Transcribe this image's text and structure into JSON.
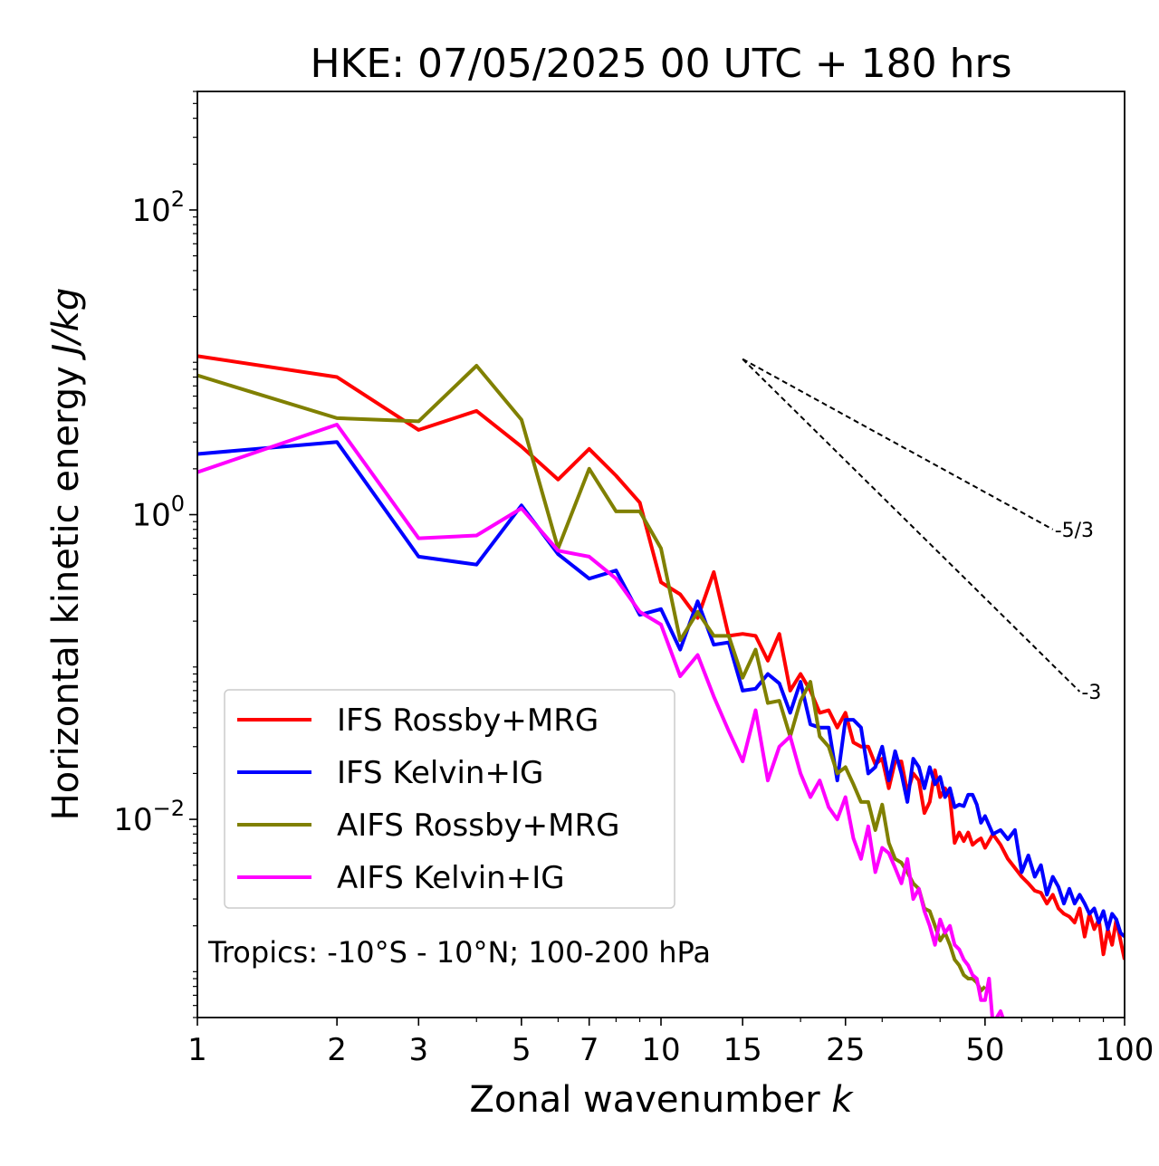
{
  "chart_data": {
    "type": "line",
    "title": "HKE: 07/05/2025 00 UTC + 180 hrs",
    "xlabel": "Zonal wavenumber",
    "xlabel_var": "k",
    "ylabel": "Horizontal kinetic energy",
    "ylabel_unit": "J/kg",
    "xscale": "log",
    "yscale": "log",
    "xlim": [
      1,
      100
    ],
    "ylim": [
      0.0005,
      600
    ],
    "xticks": [
      1,
      2,
      3,
      5,
      7,
      10,
      15,
      25,
      50,
      100
    ],
    "xtick_labels": [
      "1",
      "2",
      "3",
      "5",
      "7",
      "10",
      "15",
      "25",
      "50",
      "100"
    ],
    "yticks": [
      0.01,
      1,
      100
    ],
    "ytick_labels": [
      {
        "base": "10",
        "exp": "−2"
      },
      {
        "base": "10",
        "exp": "0"
      },
      {
        "base": "10",
        "exp": "2"
      }
    ],
    "annotation": "Tropics: -10°S - 10°N; 100-200 hPa",
    "legend_position": "lower-left",
    "reference_slopes": [
      {
        "label": "-5/3",
        "x": [
          15,
          70
        ],
        "y": [
          10.5,
          0.8
        ]
      },
      {
        "label": "-3",
        "x": [
          15,
          80
        ],
        "y": [
          10.5,
          0.069
        ]
      }
    ],
    "series": [
      {
        "name": "IFS Rossby+MRG",
        "color": "#ff0000",
        "x": [
          1,
          2,
          3,
          4,
          5,
          6,
          7,
          8,
          9,
          10,
          11,
          12,
          13,
          14,
          15,
          16,
          17,
          18,
          19,
          20,
          21,
          22,
          23,
          24,
          25,
          26,
          27,
          28,
          29,
          30,
          31,
          32,
          33,
          34,
          35,
          36,
          37,
          38,
          39,
          40,
          41,
          42,
          43,
          44,
          45,
          46,
          47,
          48,
          49,
          50,
          52,
          54,
          56,
          58,
          60,
          62,
          64,
          66,
          68,
          70,
          72,
          74,
          76,
          78,
          80,
          82,
          84,
          86,
          88,
          90,
          92,
          94,
          96,
          98,
          100
        ],
        "y": [
          11,
          8,
          3.6,
          4.8,
          2.8,
          1.7,
          2.7,
          1.8,
          1.2,
          0.36,
          0.3,
          0.21,
          0.42,
          0.16,
          0.165,
          0.16,
          0.11,
          0.165,
          0.07,
          0.09,
          0.07,
          0.05,
          0.052,
          0.04,
          0.05,
          0.032,
          0.03,
          0.03,
          0.023,
          0.025,
          0.016,
          0.024,
          0.024,
          0.015,
          0.02,
          0.018,
          0.011,
          0.013,
          0.021,
          0.014,
          0.016,
          0.014,
          0.007,
          0.0082,
          0.0072,
          0.0082,
          0.0068,
          0.0072,
          0.0075,
          0.0065,
          0.008,
          0.0068,
          0.0055,
          0.0048,
          0.0042,
          0.0038,
          0.0034,
          0.0033,
          0.0028,
          0.0032,
          0.0026,
          0.0024,
          0.0023,
          0.0021,
          0.0026,
          0.0017,
          0.0024,
          0.0019,
          0.0022,
          0.0013,
          0.0019,
          0.0015,
          0.0022,
          0.0016,
          0.0012
        ]
      },
      {
        "name": "IFS Kelvin+IG",
        "color": "#0000ff",
        "x": [
          1,
          2,
          3,
          4,
          5,
          6,
          7,
          8,
          9,
          10,
          11,
          12,
          13,
          14,
          15,
          16,
          17,
          18,
          19,
          20,
          21,
          22,
          23,
          24,
          25,
          26,
          27,
          28,
          29,
          30,
          31,
          32,
          33,
          34,
          35,
          36,
          37,
          38,
          39,
          40,
          41,
          42,
          43,
          44,
          45,
          46,
          47,
          48,
          49,
          50,
          52,
          54,
          56,
          58,
          60,
          62,
          64,
          66,
          68,
          70,
          72,
          74,
          76,
          78,
          80,
          82,
          84,
          86,
          88,
          90,
          92,
          94,
          96,
          98,
          100
        ],
        "y": [
          2.5,
          3.0,
          0.53,
          0.47,
          1.15,
          0.55,
          0.38,
          0.43,
          0.22,
          0.24,
          0.13,
          0.27,
          0.14,
          0.145,
          0.07,
          0.072,
          0.09,
          0.078,
          0.05,
          0.08,
          0.042,
          0.04,
          0.04,
          0.018,
          0.045,
          0.045,
          0.04,
          0.02,
          0.022,
          0.03,
          0.018,
          0.028,
          0.02,
          0.013,
          0.025,
          0.022,
          0.016,
          0.022,
          0.017,
          0.019,
          0.014,
          0.016,
          0.012,
          0.0125,
          0.0122,
          0.0145,
          0.0145,
          0.0125,
          0.0095,
          0.0105,
          0.008,
          0.0085,
          0.0074,
          0.0085,
          0.0045,
          0.0058,
          0.0042,
          0.005,
          0.0032,
          0.0042,
          0.0036,
          0.0028,
          0.0035,
          0.0028,
          0.0032,
          0.0028,
          0.0024,
          0.0026,
          0.0021,
          0.0025,
          0.0019,
          0.0024,
          0.0022,
          0.0018,
          0.0017
        ]
      },
      {
        "name": "AIFS Rossby+MRG",
        "color": "#808000",
        "x": [
          1,
          2,
          3,
          4,
          5,
          6,
          7,
          8,
          9,
          10,
          11,
          12,
          13,
          14,
          15,
          16,
          17,
          18,
          19,
          20,
          21,
          22,
          23,
          24,
          25,
          26,
          27,
          28,
          29,
          30,
          31,
          32,
          33,
          34,
          35,
          36,
          37,
          38,
          39,
          40,
          41,
          42,
          43,
          44,
          45,
          46,
          47,
          48,
          49,
          50
        ],
        "y": [
          8.2,
          4.3,
          4.1,
          9.5,
          4.2,
          0.6,
          2.0,
          1.05,
          1.05,
          0.6,
          0.15,
          0.23,
          0.16,
          0.16,
          0.085,
          0.13,
          0.058,
          0.06,
          0.035,
          0.06,
          0.08,
          0.035,
          0.03,
          0.02,
          0.022,
          0.017,
          0.013,
          0.013,
          0.0085,
          0.0125,
          0.007,
          0.0055,
          0.0052,
          0.0045,
          0.0038,
          0.0035,
          0.0026,
          0.0025,
          0.002,
          0.0016,
          0.0018,
          0.0015,
          0.0012,
          0.0011,
          0.00095,
          0.0009,
          0.0009,
          0.00085,
          0.00075,
          0.0008
        ]
      },
      {
        "name": "AIFS Kelvin+IG",
        "color": "#ff00ff",
        "x": [
          1,
          2,
          3,
          4,
          5,
          6,
          7,
          8,
          9,
          10,
          11,
          12,
          13,
          14,
          15,
          16,
          17,
          18,
          19,
          20,
          21,
          22,
          23,
          24,
          25,
          26,
          27,
          28,
          29,
          30,
          31,
          32,
          33,
          34,
          35,
          36,
          37,
          38,
          39,
          40,
          41,
          42,
          43,
          44,
          45,
          46,
          47,
          48,
          49,
          50,
          51,
          52,
          53,
          54,
          56,
          58
        ],
        "y": [
          1.9,
          3.9,
          0.7,
          0.73,
          1.1,
          0.58,
          0.53,
          0.38,
          0.23,
          0.19,
          0.087,
          0.12,
          0.064,
          0.038,
          0.024,
          0.052,
          0.018,
          0.03,
          0.035,
          0.02,
          0.014,
          0.018,
          0.012,
          0.01,
          0.014,
          0.0075,
          0.0055,
          0.009,
          0.0045,
          0.0065,
          0.006,
          0.0048,
          0.0038,
          0.0055,
          0.003,
          0.0035,
          0.0025,
          0.002,
          0.0015,
          0.0022,
          0.0018,
          0.002,
          0.0015,
          0.0014,
          0.0012,
          0.0011,
          0.00095,
          0.0009,
          0.00065,
          0.00065,
          0.0009,
          0.00045,
          0.0005,
          0.00055,
          0.0004,
          0.0005
        ]
      }
    ]
  }
}
